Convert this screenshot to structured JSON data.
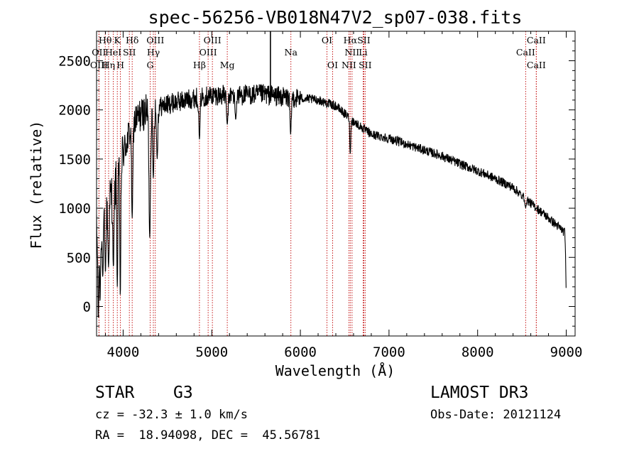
{
  "chart_data": {
    "type": "line",
    "title": "spec-56256-VB018N47V2_sp07-038.fits",
    "xlabel": "Wavelength (Å)",
    "ylabel": "Flux (relative)",
    "xlim": [
      3700,
      9100
    ],
    "ylim": [
      -300,
      2800
    ],
    "xticks": [
      "4000",
      "5000",
      "6000",
      "7000",
      "8000",
      "9000"
    ],
    "yticks": [
      "0",
      "500",
      "1000",
      "1500",
      "2000",
      "2500"
    ],
    "continuum": [
      [
        3700,
        700
      ],
      [
        3800,
        1000
      ],
      [
        3900,
        1200
      ],
      [
        4000,
        1550
      ],
      [
        4100,
        1850
      ],
      [
        4200,
        1950
      ],
      [
        4300,
        2000
      ],
      [
        4400,
        2030
      ],
      [
        4600,
        2080
      ],
      [
        4800,
        2120
      ],
      [
        5000,
        2150
      ],
      [
        5200,
        2150
      ],
      [
        5400,
        2150
      ],
      [
        5600,
        2160
      ],
      [
        5800,
        2130
      ],
      [
        6000,
        2120
      ],
      [
        6200,
        2100
      ],
      [
        6400,
        2040
      ],
      [
        6600,
        1880
      ],
      [
        6800,
        1750
      ],
      [
        7000,
        1710
      ],
      [
        7200,
        1650
      ],
      [
        7400,
        1590
      ],
      [
        7600,
        1530
      ],
      [
        7800,
        1450
      ],
      [
        8000,
        1380
      ],
      [
        8200,
        1300
      ],
      [
        8400,
        1210
      ],
      [
        8600,
        1050
      ],
      [
        8800,
        900
      ],
      [
        9000,
        740
      ]
    ],
    "absorption_features": [
      [
        3720,
        -130,
        8
      ],
      [
        3740,
        50,
        8
      ],
      [
        3770,
        300,
        10
      ],
      [
        3800,
        350,
        10
      ],
      [
        3835,
        400,
        10
      ],
      [
        3890,
        400,
        10
      ],
      [
        3934,
        200,
        8
      ],
      [
        3968,
        100,
        8
      ],
      [
        4102,
        900,
        10
      ],
      [
        4300,
        700,
        12
      ],
      [
        4340,
        1300,
        10
      ],
      [
        4384,
        1500,
        10
      ],
      [
        4861,
        1700,
        10
      ],
      [
        5175,
        1850,
        12
      ],
      [
        5270,
        1900,
        10
      ],
      [
        5890,
        1750,
        10
      ],
      [
        6563,
        1550,
        8
      ],
      [
        8498,
        1100,
        8
      ],
      [
        8542,
        1000,
        8
      ],
      [
        8662,
        1000,
        8
      ],
      [
        9000,
        150,
        8
      ]
    ],
    "spikes": [
      [
        5662,
        2800
      ]
    ],
    "emission_lines": [
      {
        "name": "Hθ",
        "x": 3798,
        "row": 0
      },
      {
        "name": "OII",
        "x": 3727,
        "row": 1
      },
      {
        "name": "OIII",
        "x": 3727,
        "row": 2
      },
      {
        "name": "Hη",
        "x": 3836,
        "row": 2
      },
      {
        "name": "HeI",
        "x": 3889,
        "row": 1
      },
      {
        "name": "K",
        "x": 3934,
        "row": 0
      },
      {
        "name": "H",
        "x": 3969,
        "row": 2
      },
      {
        "name": "SII",
        "x": 4070,
        "row": 1
      },
      {
        "name": "Hδ",
        "x": 4102,
        "row": 0
      },
      {
        "name": "OIII",
        "x": 4363,
        "row": 0
      },
      {
        "name": "Hγ",
        "x": 4341,
        "row": 1
      },
      {
        "name": "G",
        "x": 4305,
        "row": 2
      },
      {
        "name": "Hβ",
        "x": 4861,
        "row": 2
      },
      {
        "name": "OIII",
        "x": 5007,
        "row": 0
      },
      {
        "name": "OIII",
        "x": 4959,
        "row": 1
      },
      {
        "name": "Mg",
        "x": 5175,
        "row": 2
      },
      {
        "name": "Na",
        "x": 5893,
        "row": 1
      },
      {
        "name": "OI",
        "x": 6300,
        "row": 0
      },
      {
        "name": "OI",
        "x": 6364,
        "row": 2
      },
      {
        "name": "Hα",
        "x": 6563,
        "row": 0
      },
      {
        "name": "NII",
        "x": 6583,
        "row": 1
      },
      {
        "name": "NII",
        "x": 6548,
        "row": 2
      },
      {
        "name": "SII",
        "x": 6716,
        "row": 0
      },
      {
        "name": "Li",
        "x": 6708,
        "row": 1
      },
      {
        "name": "SII",
        "x": 6731,
        "row": 2
      },
      {
        "name": "CaII",
        "x": 8662,
        "row": 0
      },
      {
        "name": "CaII",
        "x": 8542,
        "row": 1
      },
      {
        "name": "CaII",
        "x": 8662,
        "row": 2
      }
    ],
    "line_marker_color": "#c00000"
  },
  "info": {
    "object_class": "STAR",
    "subclass": "G3",
    "survey": "LAMOST DR3",
    "redshift": "cz = -32.3 ± 1.0 km/s",
    "obs_date": "Obs-Date: 20121124",
    "coords": "RA =  18.94098, DEC =  45.56781"
  }
}
